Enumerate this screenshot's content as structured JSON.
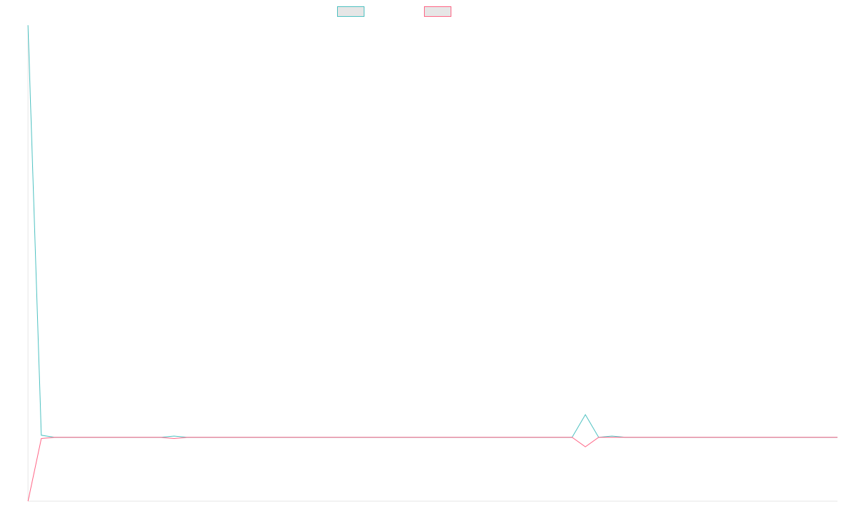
{
  "chart_data": {
    "type": "line",
    "x": [
      0,
      1,
      2,
      3,
      4,
      5,
      6,
      7,
      8,
      9,
      10,
      11,
      12,
      13,
      14,
      15,
      16,
      17,
      18,
      19,
      20,
      21,
      22,
      23,
      24,
      25,
      26,
      27,
      28,
      29,
      30,
      31,
      32,
      33,
      34,
      35,
      36,
      37,
      38,
      39,
      40,
      41,
      42,
      43,
      44,
      45,
      46,
      47,
      48,
      49,
      50,
      51,
      52,
      53,
      54,
      55,
      56,
      57,
      58,
      59,
      60,
      61
    ],
    "series": [
      {
        "name": "",
        "color": "#4bc0c0",
        "values": [
          100,
          0.5,
          0,
          0,
          0,
          0,
          0,
          0,
          0,
          0,
          0,
          0.3,
          0,
          0,
          0,
          0,
          0,
          0,
          0,
          0,
          0,
          0,
          0,
          0,
          0,
          0,
          0,
          0,
          0,
          0,
          0,
          0,
          0,
          0,
          0,
          0,
          0,
          0,
          0,
          0,
          0,
          0,
          5.5,
          0,
          0.3,
          0,
          0,
          0,
          0,
          0,
          0,
          0,
          0,
          0,
          0,
          0,
          0,
          0,
          0,
          0,
          0,
          0
        ]
      },
      {
        "name": "",
        "color": "#ff6384",
        "values": [
          -15.5,
          -0.3,
          0,
          0,
          0,
          0,
          0,
          0,
          0,
          0,
          0,
          -0.3,
          0,
          0,
          0,
          0,
          0,
          0,
          0,
          0,
          0,
          0,
          0,
          0,
          0,
          0,
          0,
          0,
          0,
          0,
          0,
          0,
          0,
          0,
          0,
          0,
          0,
          0,
          0,
          0,
          0,
          0,
          -2.3,
          0,
          0,
          0,
          0,
          0,
          0,
          0,
          0,
          0,
          0,
          0,
          0,
          0,
          0,
          0,
          0,
          0,
          0,
          0
        ]
      }
    ],
    "ylim": [
      -15.5,
      100
    ],
    "grid": false,
    "legend_position": "top-center",
    "title": "",
    "xlabel": "",
    "ylabel": ""
  }
}
